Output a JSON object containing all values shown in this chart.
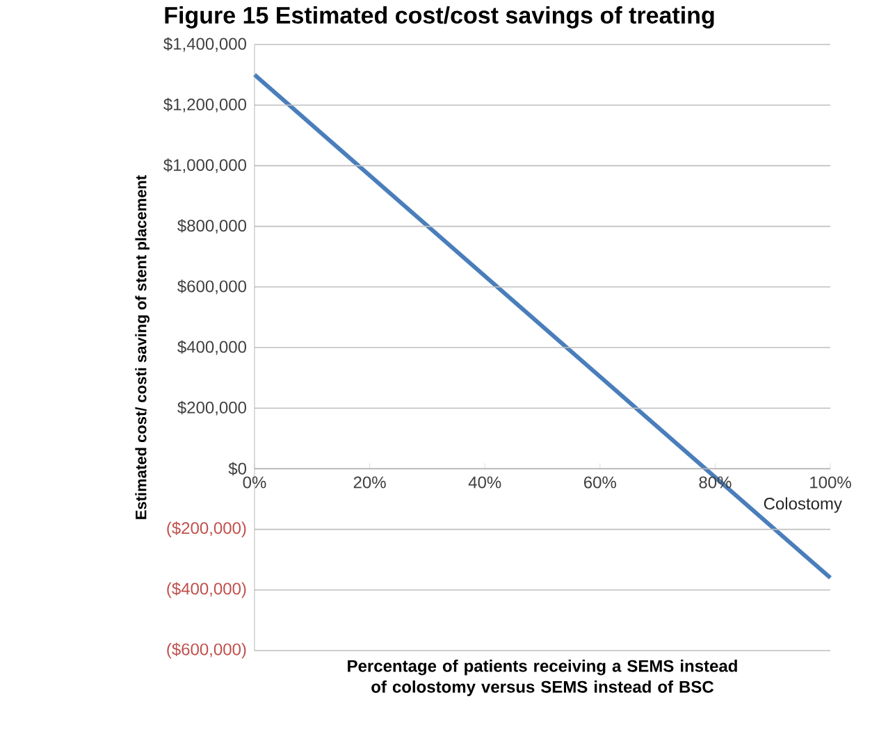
{
  "chart_data": {
    "type": "line",
    "title": "Figure 15 Estimated cost/cost savings of treating",
    "xlabel": "Percentage of patients receiving a SEMS instead of colostomy versus SEMS instead of BSC",
    "ylabel": "Estimated cost/ costi saving of stent placement",
    "x": [
      0,
      100
    ],
    "series": [
      {
        "color": "#4a7ebb",
        "values": [
          1300000,
          -360000
        ]
      }
    ],
    "xlim": [
      0,
      100
    ],
    "ylim": [
      -600000,
      1400000
    ],
    "xticks": [
      {
        "value": 0,
        "label": "0%"
      },
      {
        "value": 20,
        "label": "20%"
      },
      {
        "value": 40,
        "label": "40%"
      },
      {
        "value": 60,
        "label": "60%"
      },
      {
        "value": 80,
        "label": "80%"
      },
      {
        "value": 100,
        "label": "100%"
      }
    ],
    "yticks": [
      {
        "value": -600000,
        "label": "($600,000)"
      },
      {
        "value": -400000,
        "label": "($400,000)"
      },
      {
        "value": -200000,
        "label": "($200,000)"
      },
      {
        "value": 0,
        "label": "$0"
      },
      {
        "value": 200000,
        "label": "$200,000"
      },
      {
        "value": 400000,
        "label": "$400,000"
      },
      {
        "value": 600000,
        "label": "$600,000"
      },
      {
        "value": 800000,
        "label": "$800,000"
      },
      {
        "value": 1000000,
        "label": "$1,000,000"
      },
      {
        "value": 1200000,
        "label": "$1,200,000"
      },
      {
        "value": 1400000,
        "label": "$1,400,000"
      }
    ],
    "grid": "y",
    "marker": "none",
    "line_style": "solid",
    "annotations": [
      "Colostomy"
    ]
  }
}
